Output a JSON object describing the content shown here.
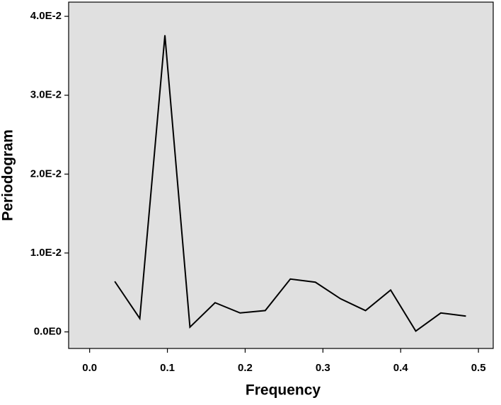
{
  "chart_data": {
    "type": "line",
    "x_label": "Frequency",
    "y_label": "Periodogram",
    "x": [
      0.0323,
      0.0645,
      0.0968,
      0.129,
      0.1613,
      0.1935,
      0.2258,
      0.2581,
      0.2903,
      0.3226,
      0.3548,
      0.3871,
      0.4194,
      0.4516,
      0.4839
    ],
    "series": [
      {
        "name": "Periodogram",
        "color": "#000000",
        "values": [
          0.0064,
          0.0017,
          0.0376,
          0.0006,
          0.0037,
          0.0024,
          0.0027,
          0.0067,
          0.0063,
          0.0042,
          0.0027,
          0.0053,
          0.0001,
          0.0024,
          0.002
        ]
      }
    ],
    "xlim": [
      -0.027,
      0.519
    ],
    "ylim": [
      -0.0021,
      0.0418
    ],
    "xticks": [
      {
        "value": 0,
        "label": "0.0"
      },
      0.1,
      0.2,
      0.3,
      0.4,
      0.5
    ],
    "yticks": [
      {
        "value": 0,
        "label": "0.0E0"
      },
      {
        "value": 0.01,
        "label": "1.0E-2"
      },
      {
        "value": 0.02,
        "label": "2.0E-2"
      },
      {
        "value": 0.03,
        "label": "3.0E-2"
      },
      {
        "value": 0.04,
        "label": "4.0E-2"
      }
    ],
    "plot_background": "#e0e0e0",
    "grid": false
  }
}
